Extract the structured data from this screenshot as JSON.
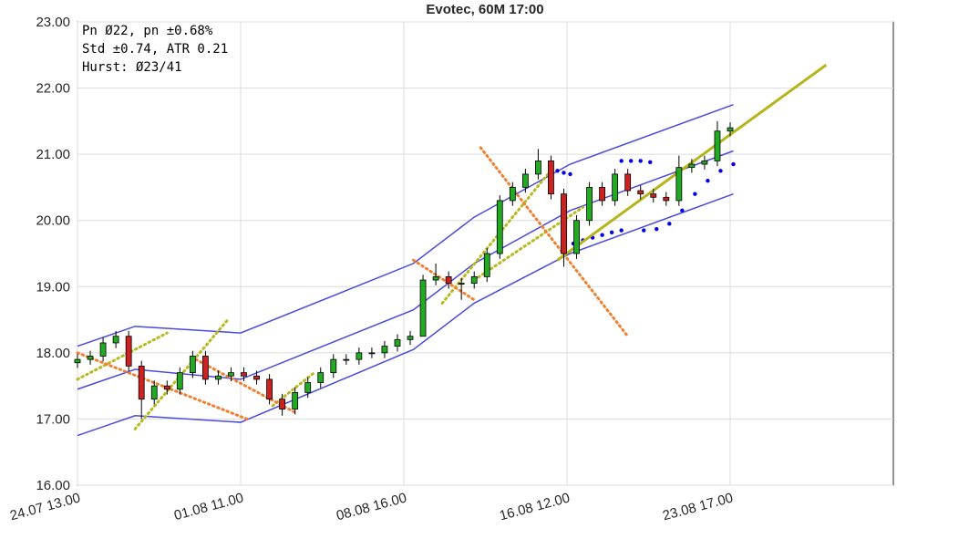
{
  "chart_data": {
    "type": "candlestick",
    "title": "Evotec, 60M 17:00",
    "info": [
      "Pn  Ø22, pn ±0.68%",
      "Std ±0.74, ATR 0.21",
      "Hurst: Ø23/41"
    ],
    "xlim": [
      0,
      255
    ],
    "ylim": [
      16,
      23
    ],
    "grid": true,
    "xticks": [
      {
        "value": 0,
        "label": "24.07 13.00"
      },
      {
        "value": 51,
        "label": "01.08 11.00"
      },
      {
        "value": 102,
        "label": "08.08 16.00"
      },
      {
        "value": 153,
        "label": "16.08 12.00"
      },
      {
        "value": 204,
        "label": "23.08 17.00"
      }
    ],
    "yticks": [
      {
        "value": 16,
        "label": "16.00"
      },
      {
        "value": 17,
        "label": "17.00"
      },
      {
        "value": 18,
        "label": "18.00"
      },
      {
        "value": 19,
        "label": "19.00"
      },
      {
        "value": 20,
        "label": "20.00"
      },
      {
        "value": 21,
        "label": "21.00"
      },
      {
        "value": 22,
        "label": "22.00"
      },
      {
        "value": 23,
        "label": "23.00"
      }
    ],
    "up_color": "#22aa22",
    "down_color": "#cc2222",
    "candles": {
      "x": [
        0,
        4,
        8,
        12,
        16,
        20,
        24,
        28,
        32,
        36,
        40,
        44,
        48,
        52,
        56,
        60,
        64,
        68,
        72,
        76,
        80,
        84,
        88,
        92,
        96,
        100,
        104,
        108,
        112,
        116,
        120,
        124,
        128,
        132,
        136,
        140,
        144,
        148,
        152,
        156,
        160,
        164,
        168,
        172,
        176,
        180,
        184,
        188,
        192,
        196,
        200,
        204
      ],
      "open": [
        17.85,
        17.9,
        17.95,
        18.15,
        18.25,
        17.8,
        17.3,
        17.5,
        17.45,
        17.7,
        17.95,
        17.6,
        17.65,
        17.7,
        17.65,
        17.6,
        17.3,
        17.15,
        17.4,
        17.55,
        17.7,
        17.9,
        17.9,
        18.0,
        18.0,
        18.1,
        18.2,
        18.25,
        19.1,
        19.15,
        19.05,
        19.05,
        19.15,
        19.5,
        20.3,
        20.5,
        20.7,
        20.9,
        20.4,
        19.5,
        20.0,
        20.5,
        20.3,
        20.7,
        20.45,
        20.4,
        20.35,
        20.3,
        20.8,
        20.85,
        20.9,
        21.35
      ],
      "high": [
        17.98,
        18.03,
        18.23,
        18.33,
        18.33,
        17.88,
        17.58,
        17.58,
        17.78,
        18.03,
        18.03,
        17.73,
        17.78,
        17.78,
        17.73,
        17.68,
        17.38,
        17.48,
        17.63,
        17.78,
        17.98,
        17.98,
        18.08,
        18.08,
        18.18,
        18.28,
        18.33,
        19.18,
        19.35,
        19.23,
        19.13,
        19.23,
        19.58,
        20.38,
        20.58,
        20.78,
        21.08,
        20.98,
        20.48,
        20.08,
        20.58,
        20.58,
        20.78,
        20.78,
        20.53,
        20.48,
        20.43,
        20.98,
        20.93,
        20.98,
        21.5,
        21.48
      ],
      "low": [
        17.77,
        17.82,
        17.87,
        18.07,
        17.72,
        17.0,
        17.22,
        17.37,
        17.37,
        17.62,
        17.52,
        17.52,
        17.57,
        17.57,
        17.52,
        17.22,
        17.05,
        17.07,
        17.32,
        17.47,
        17.62,
        17.82,
        17.82,
        17.92,
        17.92,
        18.02,
        18.12,
        18.6,
        19.02,
        18.97,
        18.8,
        18.97,
        19.07,
        19.42,
        20.22,
        20.42,
        20.62,
        20.32,
        19.3,
        19.42,
        19.92,
        20.22,
        20.22,
        20.37,
        20.32,
        20.27,
        20.22,
        20.22,
        20.72,
        20.77,
        20.82,
        21.27
      ],
      "close": [
        17.9,
        17.95,
        18.15,
        18.25,
        17.8,
        17.3,
        17.5,
        17.45,
        17.7,
        17.95,
        17.6,
        17.65,
        17.7,
        17.65,
        17.6,
        17.3,
        17.15,
        17.4,
        17.55,
        17.7,
        17.9,
        17.9,
        18.0,
        18.0,
        18.1,
        18.2,
        18.25,
        19.1,
        19.15,
        19.05,
        19.05,
        19.15,
        19.5,
        20.3,
        20.5,
        20.7,
        20.9,
        20.4,
        19.5,
        20.0,
        20.5,
        20.3,
        20.7,
        20.45,
        20.4,
        20.35,
        20.3,
        20.8,
        20.85,
        20.9,
        21.35,
        21.4
      ]
    },
    "lines": [
      {
        "color": "#4a4ae0",
        "style": "solid",
        "x": [
          0,
          18,
          51,
          105,
          124,
          154,
          205
        ],
        "y": [
          18.1,
          18.4,
          18.3,
          19.35,
          20.05,
          20.85,
          21.75
        ]
      },
      {
        "color": "#4a4ae0",
        "style": "solid",
        "x": [
          0,
          18,
          51,
          105,
          124,
          154,
          205
        ],
        "y": [
          17.45,
          17.75,
          17.6,
          18.65,
          19.35,
          20.15,
          21.05
        ]
      },
      {
        "color": "#4a4ae0",
        "style": "solid",
        "x": [
          0,
          18,
          51,
          105,
          124,
          154,
          205
        ],
        "y": [
          16.75,
          17.05,
          16.95,
          18.05,
          18.75,
          19.5,
          20.4
        ]
      },
      {
        "color": "#b8b820",
        "style": "dotted",
        "x": [
          0,
          28
        ],
        "y": [
          17.6,
          18.3
        ]
      },
      {
        "color": "#b8b820",
        "style": "dotted",
        "x": [
          18,
          47
        ],
        "y": [
          16.85,
          18.5
        ]
      },
      {
        "color": "#b8b820",
        "style": "dotted",
        "x": [
          61,
          74
        ],
        "y": [
          17.2,
          17.7
        ]
      },
      {
        "color": "#b8b820",
        "style": "dotted",
        "x": [
          114,
          147
        ],
        "y": [
          18.75,
          20.7
        ]
      },
      {
        "color": "#b8b820",
        "style": "dotted",
        "x": [
          124,
          158
        ],
        "y": [
          19.1,
          20.2
        ]
      },
      {
        "color": "#f08030",
        "style": "dotted",
        "x": [
          0,
          53
        ],
        "y": [
          18.0,
          17.0
        ]
      },
      {
        "color": "#f08030",
        "style": "dotted",
        "x": [
          37,
          68
        ],
        "y": [
          17.9,
          17.1
        ]
      },
      {
        "color": "#f08030",
        "style": "dotted",
        "x": [
          105,
          124
        ],
        "y": [
          19.4,
          18.8
        ]
      },
      {
        "color": "#f08030",
        "style": "dotted",
        "x": [
          126,
          172
        ],
        "y": [
          21.1,
          18.25
        ]
      },
      {
        "color": "#0000ee",
        "style": "dots",
        "x": [
          150,
          152,
          154
        ],
        "y": [
          20.75,
          20.72,
          20.7
        ]
      },
      {
        "color": "#0000ee",
        "style": "dots",
        "x": [
          155,
          158,
          161,
          164,
          167,
          170
        ],
        "y": [
          19.65,
          19.7,
          19.74,
          19.78,
          19.82,
          19.85
        ]
      },
      {
        "color": "#0000ee",
        "style": "dots",
        "x": [
          170,
          173,
          176,
          179
        ],
        "y": [
          20.9,
          20.9,
          20.9,
          20.88
        ]
      },
      {
        "color": "#0000ee",
        "style": "dots",
        "x": [
          177,
          181,
          185,
          189,
          193,
          197,
          201,
          205
        ],
        "y": [
          19.85,
          19.87,
          19.95,
          20.15,
          20.4,
          20.6,
          20.75,
          20.85
        ]
      },
      {
        "color": "#b5b51a",
        "style": "thick",
        "x": [
          150,
          234
        ],
        "y": [
          19.4,
          22.35
        ]
      }
    ]
  }
}
